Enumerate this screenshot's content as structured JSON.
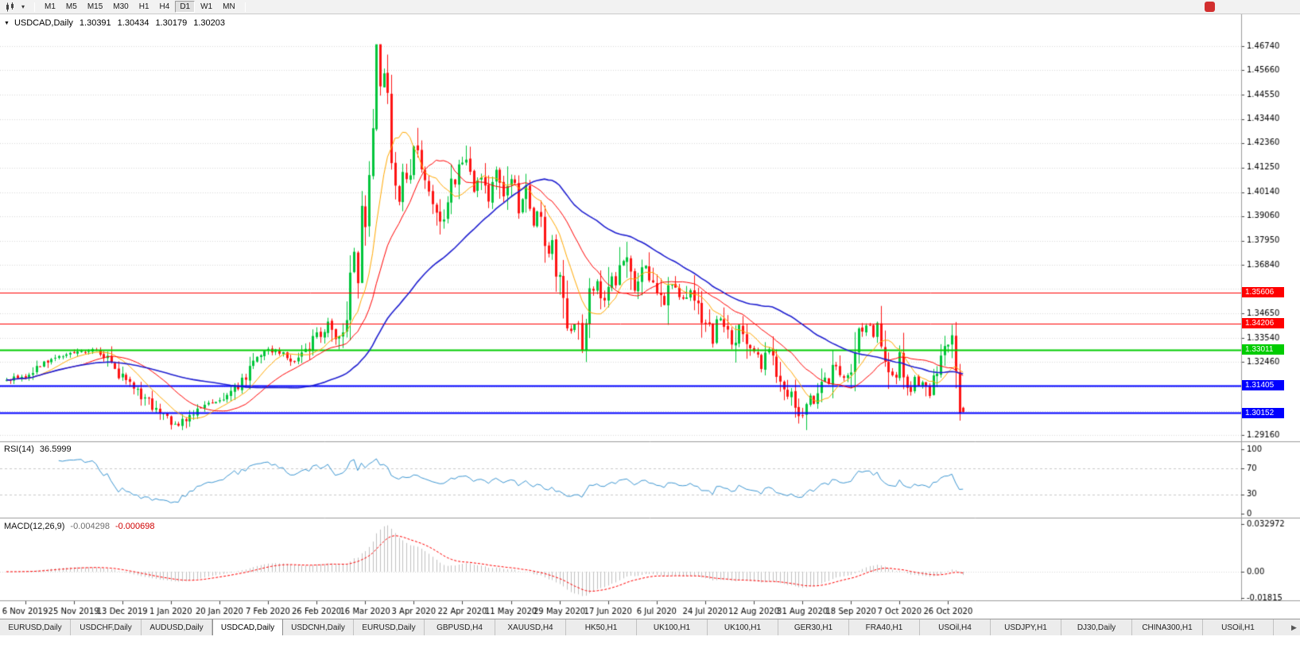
{
  "toolbar": {
    "timeframes": [
      "M1",
      "M5",
      "M15",
      "M30",
      "H1",
      "H4",
      "D1",
      "W1",
      "MN"
    ],
    "active_timeframe": "D1"
  },
  "header": {
    "symbol_period": "USDCAD,Daily",
    "open": "1.30391",
    "high": "1.30434",
    "low": "1.30179",
    "close": "1.30203"
  },
  "indicators": {
    "rsi": {
      "label": "RSI(14)",
      "value": "36.5999",
      "axis_labels": [
        "100",
        "70",
        "30",
        "0"
      ],
      "axis_values": [
        100,
        70,
        30,
        0
      ],
      "guide_levels": [
        70,
        30
      ],
      "line_color": "#3c96d2"
    },
    "macd": {
      "label": "MACD(12,26,9)",
      "main_value": "-0.004298",
      "signal_value": "-0.000698",
      "axis_labels": [
        "0.032972",
        "0.00",
        "-0.01815"
      ],
      "axis_max": 0.032972,
      "axis_min": -0.01815,
      "histogram_color": "#c0c0c0",
      "signal_color": "#ff0000"
    }
  },
  "chart_data": {
    "type": "candlestick",
    "symbol": "USDCAD",
    "period": "Daily",
    "ohlc_display": {
      "open": 1.30391,
      "high": 1.30434,
      "low": 1.30179,
      "close": 1.30203
    },
    "ylim": [
      1.2916,
      1.4674
    ],
    "price_axis": [
      "1.46740",
      "1.45660",
      "1.44550",
      "1.43440",
      "1.42360",
      "1.41250",
      "1.40140",
      "1.39060",
      "1.37950",
      "1.36840",
      "1.35760",
      "1.34650",
      "1.33540",
      "1.32460",
      "1.31350",
      "1.30240",
      "1.29160"
    ],
    "hlines": [
      {
        "label": "1.35606",
        "price": 1.35606,
        "color": "#ff0000",
        "width": 1
      },
      {
        "label": "1.34206",
        "price": 1.34206,
        "color": "#ff0000",
        "width": 1
      },
      {
        "label": "1.33011",
        "price": 1.33011,
        "color": "#00cc00",
        "width": 2
      },
      {
        "label": "1.31405",
        "price": 1.31405,
        "color": "#0000ff",
        "width": 2
      },
      {
        "label": "1.30152",
        "price": 1.30152,
        "color": "#0000ff",
        "width": 2
      }
    ],
    "x_labels": [
      "6 Nov 2019",
      "25 Nov 2019",
      "13 Dec 2019",
      "1 Jan 2020",
      "20 Jan 2020",
      "7 Feb 2020",
      "26 Feb 2020",
      "16 Mar 2020",
      "3 Apr 2020",
      "22 Apr 2020",
      "11 May 2020",
      "29 May 2020",
      "17 Jun 2020",
      "6 Jul 2020",
      "24 Jul 2020",
      "12 Aug 2020",
      "31 Aug 2020",
      "18 Sep 2020",
      "7 Oct 2020",
      "26 Oct 2020"
    ],
    "x_label_first_index": 5,
    "x_label_step": 13,
    "candle_count": 257,
    "up_color": "#00c53b",
    "down_color": "#fe1414",
    "moving_averages": [
      {
        "period": 10,
        "color": "#ffa800",
        "width": 1
      },
      {
        "period": 21,
        "color": "#ff0000",
        "width": 1
      },
      {
        "period": 50,
        "color": "#1f1fd0",
        "width": 1.6
      }
    ],
    "close_waypoints": [
      [
        0,
        1.316
      ],
      [
        5,
        1.3185
      ],
      [
        9,
        1.3225
      ],
      [
        13,
        1.327
      ],
      [
        18,
        1.3285
      ],
      [
        22,
        1.33
      ],
      [
        26,
        1.328
      ],
      [
        31,
        1.317
      ],
      [
        35,
        1.311
      ],
      [
        39,
        1.305
      ],
      [
        43,
        1.2985
      ],
      [
        46,
        1.2958
      ],
      [
        49,
        1.301
      ],
      [
        53,
        1.306
      ],
      [
        57,
        1.3068
      ],
      [
        61,
        1.312
      ],
      [
        65,
        1.322
      ],
      [
        70,
        1.33
      ],
      [
        74,
        1.329
      ],
      [
        77,
        1.3248
      ],
      [
        80,
        1.329
      ],
      [
        83,
        1.336
      ],
      [
        86,
        1.343
      ],
      [
        88,
        1.334
      ],
      [
        90,
        1.339
      ],
      [
        91,
        1.342
      ],
      [
        92,
        1.366
      ],
      [
        93,
        1.3745
      ],
      [
        94,
        1.363
      ],
      [
        95,
        1.394
      ],
      [
        96,
        1.382
      ],
      [
        97,
        1.408
      ],
      [
        98,
        1.435
      ],
      [
        99,
        1.464
      ],
      [
        100,
        1.446
      ],
      [
        101,
        1.456
      ],
      [
        102,
        1.443
      ],
      [
        103,
        1.419
      ],
      [
        104,
        1.406
      ],
      [
        105,
        1.399
      ],
      [
        106,
        1.409
      ],
      [
        107,
        1.406
      ],
      [
        108,
        1.414
      ],
      [
        109,
        1.421
      ],
      [
        110,
        1.416
      ],
      [
        112,
        1.406
      ],
      [
        113,
        1.402
      ],
      [
        115,
        1.396
      ],
      [
        116,
        1.39
      ],
      [
        117,
        1.387
      ],
      [
        118,
        1.396
      ],
      [
        119,
        1.409
      ],
      [
        120,
        1.404
      ],
      [
        122,
        1.416
      ],
      [
        123,
        1.412
      ],
      [
        125,
        1.401
      ],
      [
        126,
        1.408
      ],
      [
        127,
        1.411
      ],
      [
        128,
        1.402
      ],
      [
        129,
        1.397
      ],
      [
        130,
        1.408
      ],
      [
        131,
        1.41
      ],
      [
        133,
        1.398
      ],
      [
        134,
        1.407
      ],
      [
        135,
        1.41
      ],
      [
        137,
        1.393
      ],
      [
        138,
        1.398
      ],
      [
        139,
        1.403
      ],
      [
        140,
        1.391
      ],
      [
        141,
        1.387
      ],
      [
        142,
        1.392
      ],
      [
        143,
        1.387
      ],
      [
        144,
        1.38
      ],
      [
        145,
        1.372
      ],
      [
        146,
        1.378
      ],
      [
        147,
        1.368
      ],
      [
        148,
        1.362
      ],
      [
        149,
        1.35
      ],
      [
        150,
        1.342
      ],
      [
        151,
        1.339
      ],
      [
        152,
        1.343
      ],
      [
        153,
        1.337
      ],
      [
        154,
        1.332
      ],
      [
        155,
        1.342
      ],
      [
        156,
        1.359
      ],
      [
        157,
        1.355
      ],
      [
        158,
        1.362
      ],
      [
        159,
        1.356
      ],
      [
        160,
        1.353
      ],
      [
        161,
        1.359
      ],
      [
        162,
        1.364
      ],
      [
        163,
        1.36
      ],
      [
        164,
        1.365
      ],
      [
        165,
        1.37
      ],
      [
        166,
        1.368
      ],
      [
        167,
        1.362
      ],
      [
        168,
        1.357
      ],
      [
        169,
        1.361
      ],
      [
        171,
        1.368
      ],
      [
        172,
        1.364
      ],
      [
        174,
        1.358
      ],
      [
        175,
        1.354
      ],
      [
        176,
        1.35
      ],
      [
        177,
        1.355
      ],
      [
        178,
        1.36
      ],
      [
        180,
        1.354
      ],
      [
        181,
        1.352
      ],
      [
        182,
        1.356
      ],
      [
        183,
        1.358
      ],
      [
        184,
        1.354
      ],
      [
        185,
        1.35
      ],
      [
        186,
        1.346
      ],
      [
        187,
        1.342
      ],
      [
        188,
        1.338
      ],
      [
        189,
        1.335
      ],
      [
        190,
        1.342
      ],
      [
        191,
        1.345
      ],
      [
        192,
        1.34
      ],
      [
        194,
        1.333
      ],
      [
        195,
        1.338
      ],
      [
        196,
        1.342
      ],
      [
        197,
        1.339
      ],
      [
        199,
        1.331
      ],
      [
        200,
        1.328
      ],
      [
        202,
        1.322
      ],
      [
        203,
        1.326
      ],
      [
        204,
        1.33
      ],
      [
        205,
        1.326
      ],
      [
        207,
        1.318
      ],
      [
        208,
        1.315
      ],
      [
        210,
        1.309
      ],
      [
        211,
        1.306
      ],
      [
        212,
        1.3005
      ],
      [
        213,
        1.302
      ],
      [
        214,
        1.306
      ],
      [
        215,
        1.31
      ],
      [
        216,
        1.306
      ],
      [
        217,
        1.309
      ],
      [
        218,
        1.313
      ],
      [
        219,
        1.317
      ],
      [
        220,
        1.315
      ],
      [
        221,
        1.319
      ],
      [
        222,
        1.323
      ],
      [
        223,
        1.32
      ],
      [
        224,
        1.317
      ],
      [
        225,
        1.321
      ],
      [
        226,
        1.324
      ],
      [
        227,
        1.331
      ],
      [
        228,
        1.336
      ],
      [
        229,
        1.339
      ],
      [
        230,
        1.342
      ],
      [
        231,
        1.34
      ],
      [
        232,
        1.337
      ],
      [
        233,
        1.341
      ],
      [
        234,
        1.335
      ],
      [
        235,
        1.329
      ],
      [
        236,
        1.324
      ],
      [
        237,
        1.318
      ],
      [
        238,
        1.322
      ],
      [
        239,
        1.327
      ],
      [
        240,
        1.318
      ],
      [
        241,
        1.312
      ],
      [
        242,
        1.314
      ],
      [
        243,
        1.317
      ],
      [
        244,
        1.313
      ],
      [
        245,
        1.316
      ],
      [
        246,
        1.313
      ],
      [
        247,
        1.31
      ],
      [
        248,
        1.315
      ],
      [
        249,
        1.318
      ],
      [
        250,
        1.323
      ],
      [
        251,
        1.329
      ],
      [
        252,
        1.333
      ],
      [
        253,
        1.334
      ],
      [
        254,
        1.323
      ],
      [
        255,
        1.306
      ],
      [
        256,
        1.302
      ]
    ]
  },
  "tabs": {
    "items": [
      "EURUSD,Daily",
      "USDCHF,Daily",
      "AUDUSD,Daily",
      "USDCAD,Daily",
      "USDCNH,Daily",
      "EURUSD,Daily",
      "GBPUSD,H4",
      "XAUUSD,H4",
      "HK50,H1",
      "UK100,H1",
      "UK100,H1",
      "GER30,H1",
      "FRA40,H1",
      "USOil,H4",
      "USDJPY,H1",
      "DJ30,Daily",
      "CHINA300,H1",
      "USOil,H1"
    ],
    "active_index": 3,
    "scroll_right_glyph": "▶"
  }
}
